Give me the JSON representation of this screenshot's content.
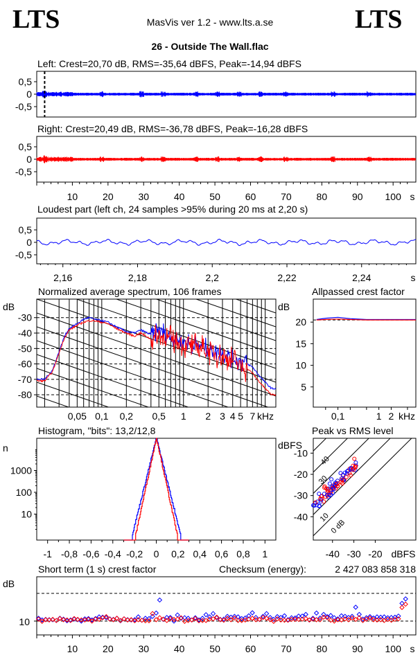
{
  "header": {
    "logo_left": "LTS",
    "logo_right": "LTS",
    "app_title": "MasVis ver 1.2 - www.lts.a.se",
    "track_title": "26 - Outside The Wall.flac"
  },
  "colors": {
    "left": "#0000ff",
    "right": "#ff0000",
    "axis": "#000000"
  },
  "chart_data": [
    {
      "type": "line",
      "id": "left",
      "title": "Left: Crest=20,70 dB, RMS=-35,64 dBFS, Peak=-14,94 dBFS",
      "yticks": [
        "0,5",
        "0",
        "-0,5"
      ],
      "ylim": [
        -1,
        1
      ],
      "xlim": [
        0,
        105
      ],
      "marker_x": 2.2,
      "xlabel": ""
    },
    {
      "type": "line",
      "id": "right",
      "title": "Right: Crest=20,49 dB, RMS=-36,78 dBFS, Peak=-16,28 dBFS",
      "yticks": [
        "0,5",
        "0",
        "-0,5"
      ],
      "ylim": [
        -1,
        1
      ],
      "xlim": [
        0,
        105
      ],
      "xticks": [
        "10",
        "20",
        "30",
        "40",
        "50",
        "60",
        "70",
        "80",
        "90",
        "100"
      ],
      "xunit": "s"
    },
    {
      "type": "line",
      "id": "loudest",
      "title": "Loudest part (left  ch, 24 samples >95% during 20 ms at 2,20 s)",
      "yticks": [
        "0,5",
        "0",
        "-0,5"
      ],
      "xticks": [
        "2,16",
        "2,18",
        "2,2",
        "2,22",
        "2,24"
      ],
      "xunit": "s",
      "xlim": [
        2.153,
        2.253
      ]
    },
    {
      "type": "line",
      "id": "spectrum",
      "title": "Normalized average spectrum, 106 frames",
      "ylabel": "dB",
      "yticks": [
        "-30",
        "-40",
        "-50",
        "-60",
        "-70",
        "-80"
      ],
      "xticks": [
        "0,05",
        "0,1",
        "0,2",
        "0,5",
        "1",
        "2",
        "3",
        "4",
        "5",
        "7"
      ],
      "xunit": "kHz",
      "xscale": "log",
      "ylim": [
        -88,
        -18
      ],
      "series": [
        {
          "x": [
            0.02,
            0.025,
            0.03,
            0.035,
            0.04,
            0.05,
            0.06,
            0.07,
            0.08,
            0.1,
            0.12,
            0.15,
            0.2,
            0.25,
            0.3,
            0.4,
            0.5,
            0.6,
            0.8,
            1,
            1.5,
            2,
            3,
            4,
            5,
            6,
            7,
            8,
            10,
            12
          ],
          "y": [
            -70,
            -64,
            -52,
            -42,
            -37,
            -34,
            -31,
            -30,
            -31,
            -32,
            -33,
            -36,
            -39,
            -40,
            -38,
            -41,
            -38,
            -40,
            -44,
            -46,
            -48,
            -50,
            -53,
            -56,
            -58,
            -60,
            -62,
            -66,
            -72,
            -76
          ]
        },
        {
          "x": [
            0.02,
            0.025,
            0.03,
            0.035,
            0.04,
            0.05,
            0.06,
            0.07,
            0.08,
            0.1,
            0.12,
            0.15,
            0.2,
            0.25,
            0.3,
            0.4,
            0.5,
            0.6,
            0.8,
            1,
            1.5,
            2,
            3,
            4,
            5,
            6,
            7,
            8,
            10,
            12
          ],
          "y": [
            -71,
            -65,
            -53,
            -43,
            -38,
            -35,
            -33,
            -32,
            -32,
            -33,
            -34,
            -37,
            -40,
            -42,
            -40,
            -44,
            -42,
            -43,
            -45,
            -48,
            -49,
            -51,
            -55,
            -58,
            -61,
            -63,
            -66,
            -70,
            -76,
            -80
          ]
        }
      ]
    },
    {
      "type": "line",
      "id": "allpassed",
      "title": "Allpassed crest factor",
      "ylabel": "dB",
      "yticks": [
        "20",
        "15",
        "10",
        "5"
      ],
      "xticks": [
        "0,1",
        "1",
        "2"
      ],
      "xunit": "kHz",
      "xscale": "log",
      "ylim": [
        0,
        25
      ],
      "series": [
        {
          "x": [
            0.03,
            0.05,
            0.1,
            0.2,
            0.5,
            1,
            2,
            5,
            10
          ],
          "y": [
            20.6,
            20.9,
            21.1,
            20.8,
            20.6,
            20.6,
            20.6,
            20.6,
            20.6
          ]
        },
        {
          "x": [
            0.03,
            0.05,
            0.1,
            0.2,
            0.5,
            1,
            2,
            5,
            10
          ],
          "y": [
            20.5,
            20.6,
            20.7,
            20.6,
            20.5,
            20.5,
            20.5,
            20.5,
            20.5
          ]
        }
      ]
    },
    {
      "type": "line",
      "id": "histogram",
      "title": "Histogram, \"bits\": 13,2/12,8",
      "ylabel": "n",
      "yticks": [
        "1000",
        "100",
        "10"
      ],
      "xticks": [
        "-1",
        "-0,8",
        "-0,6",
        "-0,4",
        "-0,2",
        "0",
        "0,2",
        "0,4",
        "0,6",
        "0,8",
        "1"
      ],
      "yscale": "log",
      "xlim": [
        -1.1,
        1.1
      ]
    },
    {
      "type": "scatter",
      "id": "peakrms",
      "title": "Peak vs RMS level",
      "ylabel": "dBFS",
      "yticks": [
        "-10",
        "-20",
        "-30",
        "-40"
      ],
      "xticks": [
        "-40",
        "-30",
        "-20"
      ],
      "xunit": "dBFS",
      "diagonal_labels": [
        "40",
        "30",
        "10",
        "0 dB"
      ]
    },
    {
      "type": "scatter",
      "id": "shortcrest",
      "title": "Short term (1 s) crest factor",
      "checksum_label": "Checksum (energy):",
      "checksum_value": "2 427 083 858 318",
      "ylabel": "dB",
      "yticks": [
        "10"
      ],
      "xticks": [
        "10",
        "20",
        "30",
        "40",
        "50",
        "60",
        "70",
        "80",
        "90",
        "100"
      ],
      "xunit": "s",
      "xlim": [
        0,
        105
      ],
      "ylim": [
        5,
        26
      ],
      "series": [
        {
          "y": [
            11.0,
            10.4,
            10.6,
            10.5,
            10.5,
            10.2,
            11.0,
            10.7,
            10.1,
            10.4,
            10.7,
            10.5,
            10.0,
            10.8,
            10.9,
            10.4,
            10.9,
            11.5,
            11.4,
            11.2,
            10.8,
            10.6,
            11.0,
            10.1,
            10.8,
            10.5,
            10.4,
            10.5,
            11.5,
            10.3,
            11.0,
            10.9,
            11.7,
            12.9,
            17.6,
            10.6,
            11.3,
            11.3,
            10.0,
            12.2,
            11.0,
            11.2,
            11.0,
            10.4,
            11.2,
            10.4,
            11.0,
            12.3,
            11.5,
            12.7,
            11.2,
            10.6,
            10.7,
            11.7,
            11.4,
            11.7,
            11.5,
            10.9,
            11.1,
            11.9,
            13.0,
            11.3,
            10.6,
            11.7,
            12.7,
            11.3,
            10.6,
            11.6,
            11.3,
            11.9,
            10.5,
            11.2,
            11.1,
            11.8,
            11.8,
            12.4,
            10.4,
            11.0,
            12.9,
            11.1,
            12.4,
            11.6,
            12.0,
            11.2,
            10.8,
            11.9,
            11.7,
            11.3,
            11.7,
            15.0,
            12.4,
            10.7,
            11.2,
            11.6,
            11.1,
            11.5,
            11.4,
            11.5,
            11.2,
            11.3,
            11.4,
            11.8,
            16.4,
            18.0
          ]
        },
        {
          "y": [
            10.7,
            9.9,
            10.5,
            10.4,
            10.6,
            10.2,
            10.9,
            10.5,
            10.4,
            10.2,
            10.9,
            10.6,
            10.4,
            10.4,
            10.6,
            10.0,
            10.7,
            10.6,
            11.2,
            11.6,
            10.7,
            10.5,
            11.0,
            10.2,
            10.8,
            10.4,
            10.5,
            10.1,
            10.5,
            10.3,
            10.1,
            10.1,
            12.7,
            10.5,
            11.2,
            10.7,
            10.2,
            10.9,
            10.6,
            10.7,
            11.2,
            9.9,
            10.2,
            10.4,
            10.9,
            10.1,
            10.2,
            10.2,
            10.7,
            10.8,
            11.4,
            10.5,
            10.3,
            11.0,
            10.5,
            11.1,
            10.2,
            10.2,
            10.4,
            10.7,
            11.0,
            10.5,
            10.6,
            11.3,
            11.0,
            10.5,
            9.9,
            10.8,
            10.4,
            10.3,
            10.3,
            10.6,
            10.6,
            10.6,
            10.7,
            10.9,
            10.4,
            10.7,
            10.5,
            10.5,
            11.4,
            11.2,
            10.3,
            10.0,
            10.5,
            10.4,
            10.8,
            10.5,
            11.1,
            10.6,
            11.2,
            10.2,
            10.7,
            11.1,
            10.5,
            10.4,
            10.5,
            10.2,
            10.6,
            10.3,
            10.6,
            10.8,
            14.9,
            16.1
          ]
        }
      ]
    }
  ]
}
